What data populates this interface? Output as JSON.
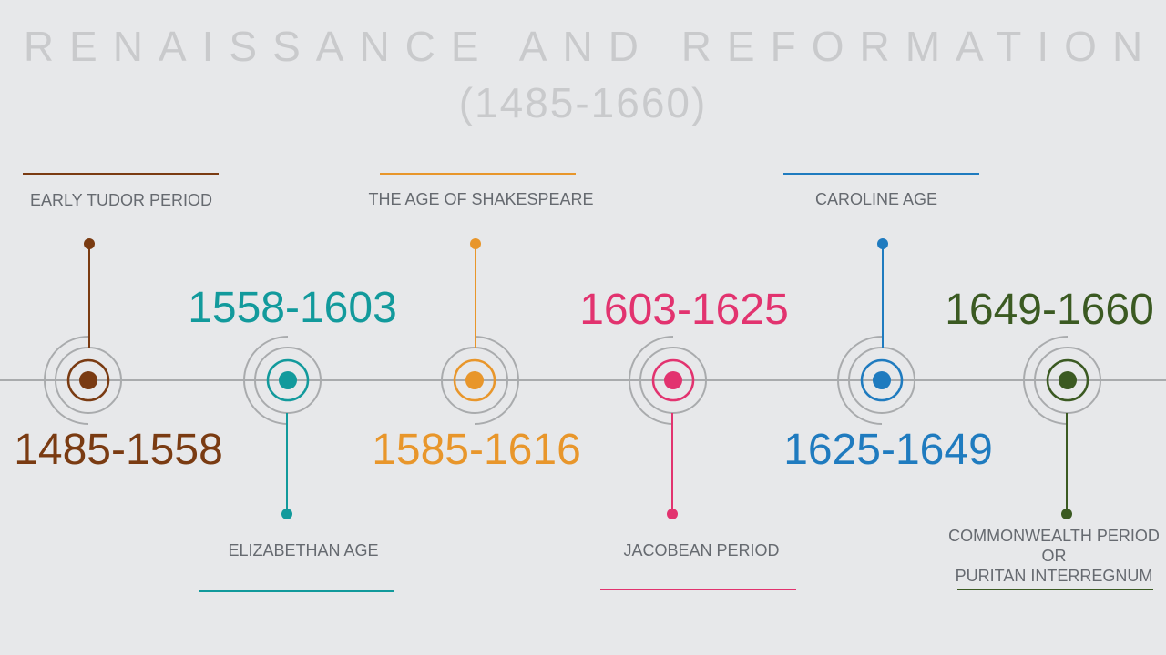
{
  "title": {
    "main": "RENAISSANCE AND REFORMATION",
    "sub": "(1485-1660)"
  },
  "periods": [
    {
      "name": "EARLY TUDOR PERIOD",
      "years": "1485-1558",
      "color": "#7a3b12",
      "marker_icon": "concentric-circle-icon"
    },
    {
      "name": "ELIZABETHAN AGE",
      "years": "1558-1603",
      "color": "#129a9c",
      "marker_icon": "concentric-circle-icon"
    },
    {
      "name": "THE AGE OF SHAKESPEARE",
      "years": "1585-1616",
      "color": "#e8962b",
      "marker_icon": "concentric-circle-icon"
    },
    {
      "name": "JACOBEAN PERIOD",
      "years": "1603-1625",
      "color": "#e2336f",
      "marker_icon": "concentric-circle-icon"
    },
    {
      "name": "CAROLINE AGE",
      "years": "1625-1649",
      "color": "#1f7bbf",
      "marker_icon": "concentric-circle-icon"
    },
    {
      "name": "COMMONWEALTH PERIOD\nOR\nPURITAN INTERREGNUM",
      "years": "1649-1660",
      "color": "#3b5a22",
      "marker_icon": "concentric-circle-icon"
    }
  ],
  "colors": {
    "background": "#e7e8ea",
    "timeline": "#a9abad",
    "rings": "#a9abad",
    "title": "#c9cacc"
  }
}
